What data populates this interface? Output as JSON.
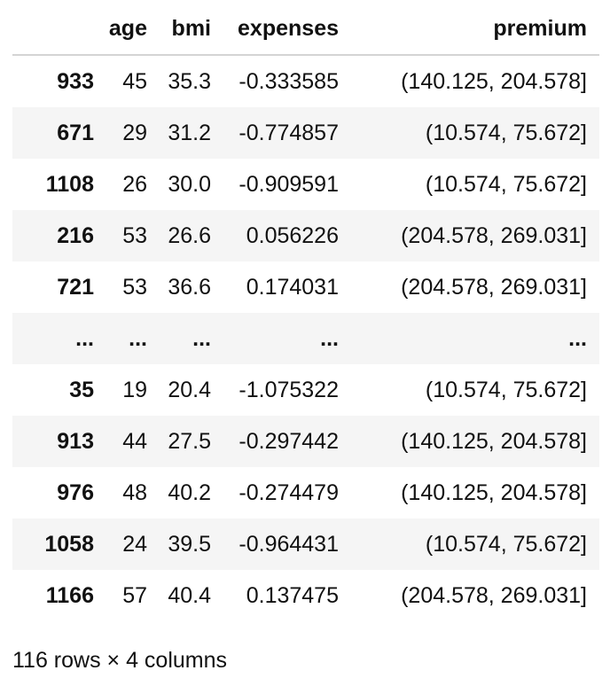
{
  "table": {
    "columns": [
      "",
      "age",
      "bmi",
      "expenses",
      "premium"
    ],
    "rows": [
      {
        "index": "933",
        "age": "45",
        "bmi": "35.3",
        "expenses": "-0.333585",
        "premium": "(140.125, 204.578]"
      },
      {
        "index": "671",
        "age": "29",
        "bmi": "31.2",
        "expenses": "-0.774857",
        "premium": "(10.574, 75.672]"
      },
      {
        "index": "1108",
        "age": "26",
        "bmi": "30.0",
        "expenses": "-0.909591",
        "premium": "(10.574, 75.672]"
      },
      {
        "index": "216",
        "age": "53",
        "bmi": "26.6",
        "expenses": "0.056226",
        "premium": "(204.578, 269.031]"
      },
      {
        "index": "721",
        "age": "53",
        "bmi": "36.6",
        "expenses": "0.174031",
        "premium": "(204.578, 269.031]"
      },
      {
        "index": "...",
        "age": "...",
        "bmi": "...",
        "expenses": "...",
        "premium": "..."
      },
      {
        "index": "35",
        "age": "19",
        "bmi": "20.4",
        "expenses": "-1.075322",
        "premium": "(10.574, 75.672]"
      },
      {
        "index": "913",
        "age": "44",
        "bmi": "27.5",
        "expenses": "-0.297442",
        "premium": "(140.125, 204.578]"
      },
      {
        "index": "976",
        "age": "48",
        "bmi": "40.2",
        "expenses": "-0.274479",
        "premium": "(140.125, 204.578]"
      },
      {
        "index": "1058",
        "age": "24",
        "bmi": "39.5",
        "expenses": "-0.964431",
        "premium": "(10.574, 75.672]"
      },
      {
        "index": "1166",
        "age": "57",
        "bmi": "40.4",
        "expenses": "0.137475",
        "premium": "(204.578, 269.031]"
      }
    ]
  },
  "footer": {
    "shape_text": "116 rows × 4 columns"
  }
}
